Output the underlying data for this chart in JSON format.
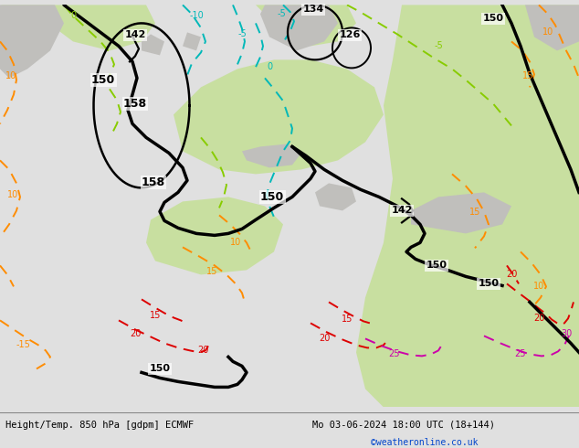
{
  "title_left": "Height/Temp. 850 hPa [gdpm] ECMWF",
  "title_right": "Mo 03-06-2024 18:00 UTC (18+144)",
  "copyright": "©weatheronline.co.uk",
  "fig_width": 6.34,
  "fig_height": 4.9,
  "dpi": 100
}
